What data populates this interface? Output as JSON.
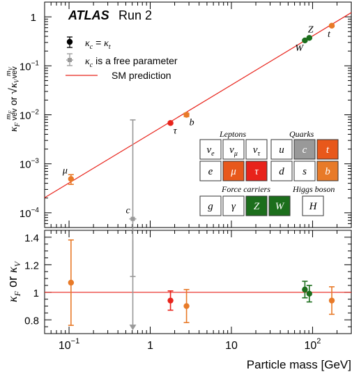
{
  "chart_data": [
    {
      "type": "scatter",
      "ylabel": "κ_F m_F/vev or √κ_V m_V/vev",
      "xscale": "log",
      "yscale": "log",
      "xlim": [
        0.05,
        300
      ],
      "ylim": [
        5e-05,
        2
      ],
      "experiment_label": "ATLAS",
      "run_label": "Run 2",
      "legend": {
        "placement": "top-left",
        "entries": [
          {
            "label": "κ_c = κ_t",
            "marker": "black-circle-errorbar"
          },
          {
            "label": "κ_c is a free parameter",
            "marker": "grey-plus-errorbar"
          },
          {
            "label": "SM prediction",
            "marker": "red-line"
          }
        ]
      },
      "sm_line": {
        "x": [
          0.05,
          300
        ],
        "y": [
          0.000203,
          1.22
        ]
      },
      "points": [
        {
          "label": "μ",
          "x": 0.1057,
          "y": 0.00049,
          "yerr_low": 0.00011,
          "yerr_high": 0.00011,
          "color": "#e87a28"
        },
        {
          "label": "τ",
          "x": 1.777,
          "y": 0.0068,
          "yerr_low": 0.0003,
          "yerr_high": 0.0003,
          "color": "#e8231b"
        },
        {
          "label": "b",
          "x": 2.8,
          "y": 0.01,
          "yerr_low": 0.0008,
          "yerr_high": 0.0008,
          "color": "#e87a28"
        },
        {
          "label": "W",
          "x": 80.4,
          "y": 0.33,
          "yerr_low": 0.01,
          "yerr_high": 0.01,
          "color": "#1c6e1c"
        },
        {
          "label": "Z",
          "x": 91.2,
          "y": 0.372,
          "yerr_low": 0.01,
          "yerr_high": 0.01,
          "color": "#1c6e1c"
        },
        {
          "label": "t",
          "x": 172.5,
          "y": 0.66,
          "yerr_low": 0.03,
          "yerr_high": 0.03,
          "color": "#e87a28"
        },
        {
          "label": "c",
          "x": 0.61,
          "y": 7.5e-05,
          "yerr_low": 7e-05,
          "yerr_high": 0.0078,
          "color": "#999999"
        }
      ],
      "particle_table": {
        "leptons_title": "Leptons",
        "quarks_title": "Quarks",
        "force_title": "Force carriers",
        "higgs_title": "Higgs boson",
        "leptons": [
          [
            "ν_e",
            "ν_μ",
            "ν_τ"
          ],
          [
            "e",
            "μ",
            "τ"
          ]
        ],
        "leptons_colors": [
          [
            "#ffffff",
            "#ffffff",
            "#ffffff"
          ],
          [
            "#ffffff",
            "#e8581b",
            "#e8231b"
          ]
        ],
        "quarks": [
          [
            "u",
            "c",
            "t"
          ],
          [
            "d",
            "s",
            "b"
          ]
        ],
        "quarks_colors": [
          [
            "#ffffff",
            "#999999",
            "#e8581b"
          ],
          [
            "#ffffff",
            "#ffffff",
            "#e87a28"
          ]
        ],
        "force": [
          "g",
          "γ",
          "Z",
          "W"
        ],
        "force_colors": [
          "#ffffff",
          "#ffffff",
          "#1c6e1c",
          "#1c6e1c"
        ],
        "higgs": "H"
      }
    },
    {
      "type": "scatter",
      "xlabel": "Particle mass [GeV]",
      "ylabel": "κ_F or κ_V",
      "xscale": "log",
      "xlim": [
        0.05,
        300
      ],
      "ylim": [
        0.7,
        1.45
      ],
      "sm_line": 1.0,
      "x_ticks": [
        "10⁻¹",
        "1",
        "10",
        "10²"
      ],
      "y_ticks": [
        "0.8",
        "1",
        "1.2",
        "1.4"
      ],
      "points": [
        {
          "label": "μ",
          "x": 0.1057,
          "y": 1.07,
          "err": 0.31,
          "color": "#e87a28"
        },
        {
          "label": "τ",
          "x": 1.777,
          "y": 0.94,
          "err": 0.07,
          "color": "#e8231b"
        },
        {
          "label": "b",
          "x": 2.8,
          "y": 0.9,
          "err": 0.12,
          "color": "#e87a28"
        },
        {
          "label": "W",
          "x": 80.4,
          "y": 1.02,
          "err": 0.06,
          "color": "#1c6e1c"
        },
        {
          "label": "Z",
          "x": 91.2,
          "y": 0.99,
          "err": 0.06,
          "color": "#1c6e1c"
        },
        {
          "label": "t",
          "x": 172.5,
          "y": 0.94,
          "err": 0.1,
          "color": "#e87a28"
        },
        {
          "label": "c",
          "x": 0.61,
          "y": 0.74,
          "err_low": 0.0,
          "err_high": 0.64,
          "color": "#999999"
        }
      ]
    }
  ]
}
